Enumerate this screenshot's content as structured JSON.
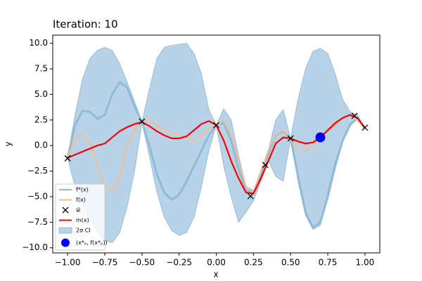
{
  "chart_data": {
    "type": "line",
    "title": "Iteration: 10",
    "xlabel": "x",
    "ylabel": "y",
    "x": [
      -1.0,
      -0.95,
      -0.9,
      -0.85,
      -0.8,
      -0.75,
      -0.7,
      -0.65,
      -0.6,
      -0.55,
      -0.5,
      -0.45,
      -0.4,
      -0.35,
      -0.3,
      -0.25,
      -0.2,
      -0.15,
      -0.1,
      -0.05,
      0.0,
      0.05,
      0.1,
      0.15,
      0.2,
      0.25,
      0.3,
      0.35,
      0.4,
      0.45,
      0.5,
      0.55,
      0.6,
      0.65,
      0.7,
      0.75,
      0.8,
      0.85,
      0.9,
      0.95,
      1.0
    ],
    "band": {
      "name": "2σ CI",
      "color": "#b8d3e8",
      "edge": "#94bddb",
      "upper": [
        -1.2,
        3,
        6.5,
        8.5,
        9.3,
        9.6,
        9.3,
        8.0,
        6.2,
        4.3,
        2.3,
        5.5,
        8.5,
        9.6,
        9.8,
        9.9,
        10.0,
        9.0,
        7.0,
        3.5,
        2.0,
        3.6,
        2.5,
        -1.0,
        -4.0,
        -4.4,
        -2.8,
        -0.5,
        2.5,
        3.5,
        0.7,
        4.5,
        7.5,
        9.2,
        9.5,
        9.0,
        7.0,
        4.5,
        3.3,
        3.0,
        1.7
      ],
      "lower": [
        -1.2,
        -4,
        -5.8,
        -7.2,
        -8.5,
        -9.3,
        -9.5,
        -8.5,
        -6.0,
        -2.5,
        2.3,
        -1.0,
        -4.5,
        -7.0,
        -8.3,
        -8.8,
        -8.5,
        -7.0,
        -4.0,
        -0.5,
        2.0,
        -2.0,
        -5.0,
        -7.5,
        -6.5,
        -5.4,
        -3.5,
        -1.5,
        -3.0,
        -3.5,
        0.7,
        -3.5,
        -6.8,
        -8.2,
        -7.8,
        -4.5,
        -1.5,
        0.5,
        2.2,
        2.6,
        1.7
      ]
    },
    "series": [
      {
        "name": "f*(x)",
        "color": "#8fbbd9",
        "width": 3,
        "values": [
          -1.2,
          2.0,
          3.4,
          3.3,
          2.6,
          3.0,
          5.0,
          6.2,
          5.7,
          3.8,
          2.3,
          0.0,
          -2.8,
          -4.6,
          -5.3,
          -4.8,
          -3.5,
          -2.0,
          -0.5,
          1.0,
          2.0,
          2.2,
          0.5,
          -2.3,
          -4.4,
          -4.6,
          -3.0,
          -0.8,
          1.0,
          1.4,
          0.7,
          -3.0,
          -6.5,
          -8.0,
          -7.5,
          -5.0,
          -2.0,
          0.5,
          2.0,
          2.7,
          1.7
        ]
      },
      {
        "name": "f(x)",
        "color": "#f3bb8e",
        "width": 2,
        "values": [
          -1.2,
          0.8,
          1.1,
          0.3,
          -2.0,
          -4.0,
          -4.5,
          -3.0,
          0.0,
          1.5,
          2.3,
          2.5,
          2.0,
          1.6,
          1.3,
          1.0,
          0.8,
          0.5,
          1.0,
          1.6,
          2.0,
          2.4,
          1.0,
          -1.5,
          -4.0,
          -4.6,
          -2.5,
          -0.5,
          1.0,
          1.5,
          0.7,
          -0.3,
          -0.5,
          -0.1,
          0.8,
          1.4,
          2.0,
          2.8,
          2.9,
          2.5,
          1.7
        ]
      },
      {
        "name": "m(x)",
        "color": "#ff0000",
        "width": 2.2,
        "values": [
          -1.2,
          -0.9,
          -0.6,
          -0.3,
          0.0,
          0.2,
          0.8,
          1.4,
          1.8,
          2.1,
          2.3,
          1.9,
          1.4,
          1.0,
          0.7,
          0.7,
          0.9,
          1.5,
          2.1,
          2.4,
          2.0,
          0.5,
          -1.5,
          -3.2,
          -4.6,
          -4.7,
          -3.2,
          -1.5,
          0.2,
          0.8,
          0.7,
          0.4,
          0.2,
          0.3,
          0.8,
          1.5,
          2.2,
          2.7,
          3.0,
          2.7,
          1.7
        ]
      }
    ],
    "scatter": {
      "name": "𝒟",
      "x": [
        -1.0,
        -0.5,
        0.0,
        0.23,
        0.33,
        0.5,
        0.93,
        1.0
      ],
      "y": [
        -1.25,
        2.35,
        2.0,
        -4.95,
        -1.9,
        0.7,
        2.9,
        1.75
      ]
    },
    "best": {
      "name": "(x*ₚ, f(x*ₚ))",
      "color": "#0000ff",
      "x": 0.7,
      "y": 0.8
    },
    "xlim": [
      -1.1,
      1.1
    ],
    "ylim": [
      -10.5,
      10.8
    ],
    "xticks": [
      {
        "value": -1.0,
        "label": "−1.00"
      },
      {
        "value": -0.75,
        "label": "−0.75"
      },
      {
        "value": -0.5,
        "label": "−0.50"
      },
      {
        "value": -0.25,
        "label": "−0.25"
      },
      {
        "value": 0,
        "label": "0.00"
      },
      {
        "value": 0.25,
        "label": "0.25"
      },
      {
        "value": 0.5,
        "label": "0.50"
      },
      {
        "value": 0.75,
        "label": "0.75"
      },
      {
        "value": 1,
        "label": "1.00"
      }
    ],
    "yticks": [
      {
        "value": -10,
        "label": "−10.0"
      },
      {
        "value": -7.5,
        "label": "−7.5"
      },
      {
        "value": -5,
        "label": "−5.0"
      },
      {
        "value": -2.5,
        "label": "−2.5"
      },
      {
        "value": 0,
        "label": "0.0"
      },
      {
        "value": 2.5,
        "label": "2.5"
      },
      {
        "value": 5,
        "label": "5.0"
      },
      {
        "value": 7.5,
        "label": "7.5"
      },
      {
        "value": 10,
        "label": "10.0"
      }
    ],
    "legend": "lower left"
  }
}
